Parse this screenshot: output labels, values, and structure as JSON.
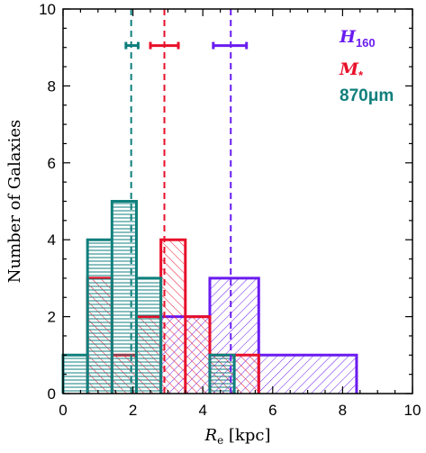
{
  "chart_data": {
    "type": "histogram",
    "xlabel": {
      "main": "R",
      "sub": "e",
      "unit": " [kpc]"
    },
    "ylabel": "Number of Galaxies",
    "xlim": [
      0,
      10
    ],
    "ylim": [
      0,
      10
    ],
    "xticks": [
      "0",
      "2",
      "4",
      "6",
      "8",
      "10"
    ],
    "yticks": [
      "0",
      "2",
      "4",
      "6",
      "8",
      "10"
    ],
    "grid": false,
    "legend_placement": "top-right",
    "series": [
      {
        "key": "h160",
        "label_main": "H",
        "label_sub": "160",
        "color": "#6a1cf0",
        "hatch": "diagonal-up",
        "bins": [
          {
            "x0": 2.8,
            "x1": 4.2,
            "count": 2
          },
          {
            "x0": 4.2,
            "x1": 5.6,
            "count": 3
          },
          {
            "x0": 5.6,
            "x1": 8.4,
            "count": 1
          }
        ],
        "median": 4.8,
        "err": [
          4.3,
          5.25
        ]
      },
      {
        "key": "mstar",
        "label_main": "M",
        "label_sub": "*",
        "color": "#e8102a",
        "hatch": "diagonal-down",
        "bins": [
          {
            "x0": 0.7,
            "x1": 1.4,
            "count": 3
          },
          {
            "x0": 1.4,
            "x1": 2.1,
            "count": 1
          },
          {
            "x0": 2.1,
            "x1": 2.8,
            "count": 2
          },
          {
            "x0": 2.8,
            "x1": 3.5,
            "count": 4
          },
          {
            "x0": 3.5,
            "x1": 4.2,
            "count": 2
          },
          {
            "x0": 4.2,
            "x1": 5.6,
            "count": 1
          }
        ],
        "median": 2.9,
        "err": [
          2.5,
          3.3
        ]
      },
      {
        "key": "mm870",
        "label_main": "870μm",
        "label_sub": "",
        "color": "#0f7f7c",
        "hatch": "horizontal",
        "bins": [
          {
            "x0": 0.0,
            "x1": 0.7,
            "count": 1
          },
          {
            "x0": 0.7,
            "x1": 1.4,
            "count": 4
          },
          {
            "x0": 1.4,
            "x1": 2.1,
            "count": 5
          },
          {
            "x0": 2.1,
            "x1": 2.8,
            "count": 3
          },
          {
            "x0": 2.8,
            "x1": 4.2,
            "count": 0
          },
          {
            "x0": 4.2,
            "x1": 4.9,
            "count": 1
          }
        ],
        "median": 1.95,
        "err": [
          1.8,
          2.15
        ]
      }
    ],
    "error_bar_y": 9.05
  }
}
